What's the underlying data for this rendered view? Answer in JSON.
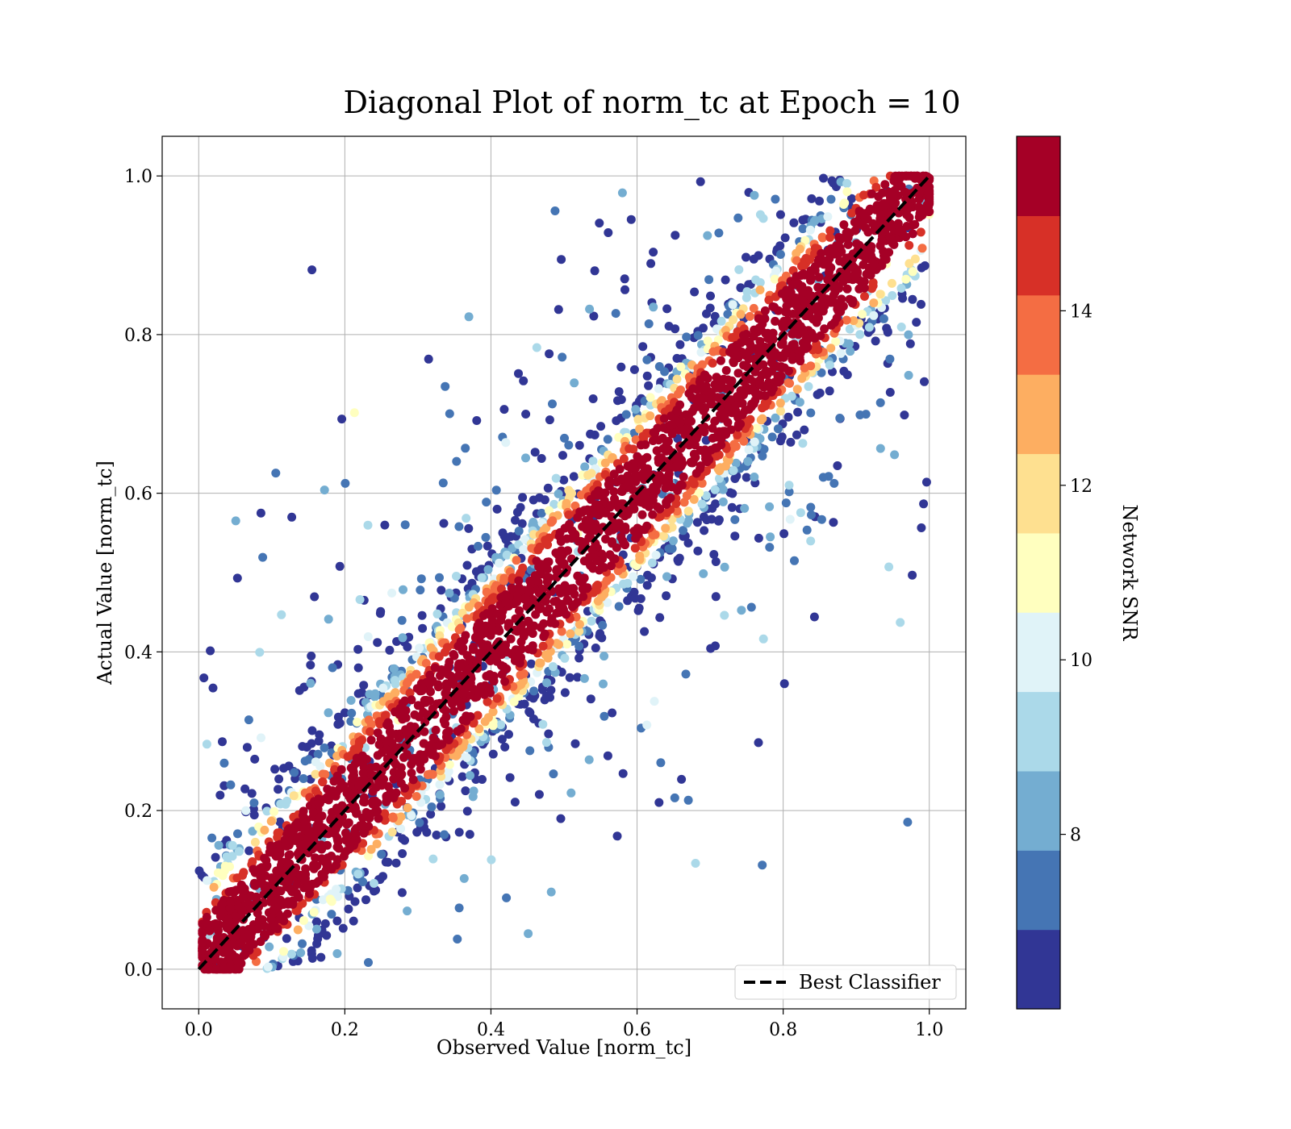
{
  "chart_data": {
    "type": "scatter",
    "title": "Diagonal Plot of norm_tc at Epoch = 10",
    "xlabel": "Observed Value [norm_tc]",
    "ylabel": "Actual Value [norm_tc]",
    "xlim": [
      -0.05,
      1.05
    ],
    "ylim": [
      -0.05,
      1.05
    ],
    "xticks": [
      "0.0",
      "0.2",
      "0.4",
      "0.6",
      "0.8",
      "1.0"
    ],
    "yticks": [
      "0.0",
      "0.2",
      "0.4",
      "0.6",
      "0.8",
      "1.0"
    ],
    "grid": true,
    "legend": {
      "position": "lower-right",
      "entries": [
        {
          "label": "Best Classifier",
          "style": "dashed",
          "color": "#000000"
        }
      ]
    },
    "reference_line": {
      "name": "Best Classifier",
      "x": [
        0,
        1
      ],
      "y": [
        0,
        1
      ]
    },
    "colorbar": {
      "label": "Network SNR",
      "range": [
        6,
        16
      ],
      "ticks": [
        "8",
        "10",
        "12",
        "14"
      ],
      "colors": [
        "#313695",
        "#4575b4",
        "#74add1",
        "#abd9e9",
        "#e0f3f8",
        "#ffffbf",
        "#fee090",
        "#fdae61",
        "#f46d43",
        "#d73027",
        "#a50026"
      ]
    },
    "scatter_description": {
      "points_approx": 4000,
      "high_snr_band_halfwidth": 0.07,
      "color_encodes": "Network SNR"
    }
  }
}
